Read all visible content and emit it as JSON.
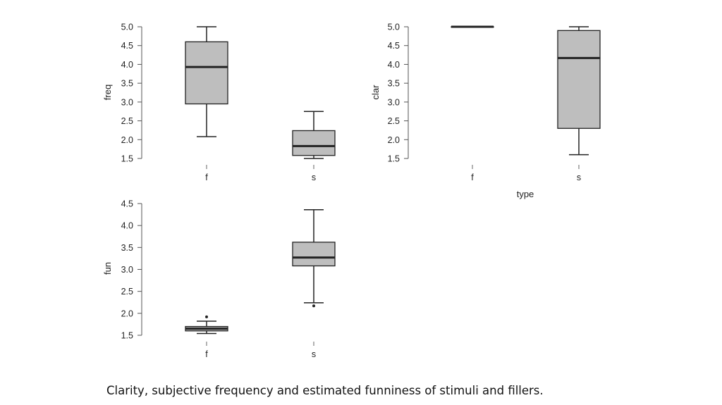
{
  "caption": "Clarity, subjective frequency and estimated funniness of stimuli and fillers.",
  "colors": {
    "box_fill": "#bebebe",
    "stroke": "#222222",
    "background": "#ffffff"
  },
  "chart_data": [
    {
      "type": "box",
      "id": "freq",
      "ylabel": "freq",
      "xlabel": "",
      "categories": [
        "f",
        "s"
      ],
      "yticks": [
        "1.5",
        "2.0",
        "2.5",
        "3.0",
        "3.5",
        "4.0",
        "4.5",
        "5.0"
      ],
      "ylim": [
        1.5,
        5.0
      ],
      "boxes": [
        {
          "category": "f",
          "min": 2.08,
          "q1": 2.95,
          "median": 3.93,
          "q3": 4.6,
          "max": 5.0,
          "outliers": []
        },
        {
          "category": "s",
          "min": 1.5,
          "q1": 1.58,
          "median": 1.83,
          "q3": 2.24,
          "max": 2.75,
          "outliers": []
        }
      ]
    },
    {
      "type": "box",
      "id": "clar",
      "ylabel": "clar",
      "xlabel": "type",
      "categories": [
        "f",
        "s"
      ],
      "yticks": [
        "1.5",
        "2.0",
        "2.5",
        "3.0",
        "3.5",
        "4.0",
        "4.5",
        "5.0"
      ],
      "ylim": [
        1.5,
        5.0
      ],
      "boxes": [
        {
          "category": "f",
          "min": 5.0,
          "q1": 5.0,
          "median": 5.0,
          "q3": 5.0,
          "max": 5.0,
          "outliers": []
        },
        {
          "category": "s",
          "min": 1.6,
          "q1": 2.3,
          "median": 4.17,
          "q3": 4.9,
          "max": 5.0,
          "outliers": []
        }
      ]
    },
    {
      "type": "box",
      "id": "fun",
      "ylabel": "fun",
      "xlabel": "",
      "categories": [
        "f",
        "s"
      ],
      "yticks": [
        "1.5",
        "2.0",
        "2.5",
        "3.0",
        "3.5",
        "4.0",
        "4.5"
      ],
      "ylim": [
        1.5,
        4.5
      ],
      "boxes": [
        {
          "category": "f",
          "min": 1.54,
          "q1": 1.6,
          "median": 1.65,
          "q3": 1.7,
          "max": 1.82,
          "outliers": [
            1.92
          ]
        },
        {
          "category": "s",
          "min": 2.24,
          "q1": 3.08,
          "median": 3.27,
          "q3": 3.62,
          "max": 4.36,
          "outliers": [
            2.17
          ]
        }
      ]
    }
  ]
}
